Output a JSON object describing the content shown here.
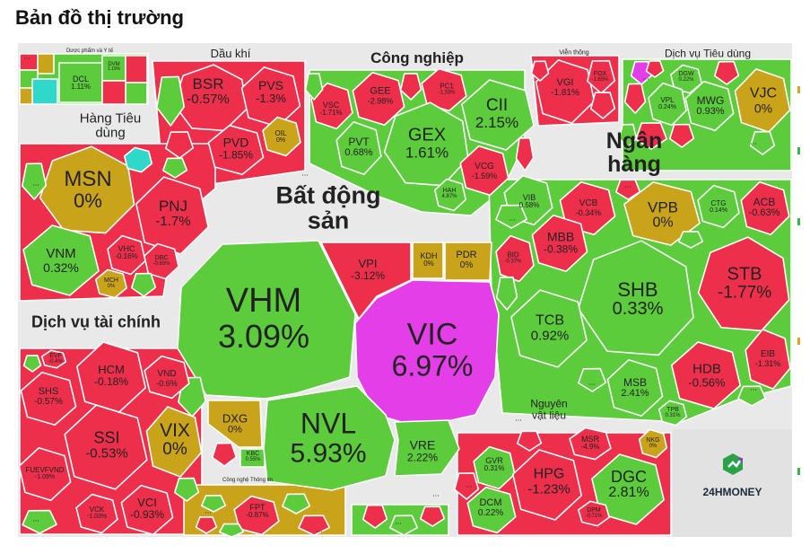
{
  "page": {
    "title": "Bản đồ thị trường",
    "brand": "24HMONEY",
    "more": "..."
  },
  "colors": {
    "red": "#ee2f4b",
    "green": "#5ccb3c",
    "yellow": "#c9a319",
    "purple": "#e43ee9",
    "cyan": "#2fd8c8",
    "bg": "#e9e9e9"
  },
  "sectors": [
    {
      "name": "Dược phẩm và Y tế"
    },
    {
      "name": "Dầu khí"
    },
    {
      "name": "Công nghiệp"
    },
    {
      "name": "Viễn thông"
    },
    {
      "name": "Dịch vụ Tiêu dùng"
    },
    {
      "name": "Hàng Tiêu dùng"
    },
    {
      "name": "Ngân hàng"
    },
    {
      "name": "Bất động sản"
    },
    {
      "name": "Dịch vụ tài chính"
    },
    {
      "name": "Nguyên vật liệu"
    },
    {
      "name": "Công nghệ Thông tin"
    }
  ],
  "stocks": [
    {
      "ticker": "DCL",
      "change": "1.11%",
      "color": "green"
    },
    {
      "ticker": "DVM",
      "change": "1.19%",
      "color": "green"
    },
    {
      "ticker": "BSR",
      "change": "-0.57%",
      "color": "red"
    },
    {
      "ticker": "PVS",
      "change": "-1.3%",
      "color": "red"
    },
    {
      "ticker": "OIL",
      "change": "0%",
      "color": "yellow"
    },
    {
      "ticker": "PVD",
      "change": "-1.85%",
      "color": "red"
    },
    {
      "ticker": "GEE",
      "change": "-2.98%",
      "color": "red"
    },
    {
      "ticker": "PC1",
      "change": "-1.33%",
      "color": "red"
    },
    {
      "ticker": "CII",
      "change": "2.15%",
      "color": "green"
    },
    {
      "ticker": "VSC",
      "change": "-1.71%",
      "color": "red"
    },
    {
      "ticker": "PVT",
      "change": "0.68%",
      "color": "green"
    },
    {
      "ticker": "GEX",
      "change": "1.61%",
      "color": "green"
    },
    {
      "ticker": "VCG",
      "change": "-1.59%",
      "color": "red"
    },
    {
      "ticker": "HAH",
      "change": "4.87%",
      "color": "green"
    },
    {
      "ticker": "VGI",
      "change": "-1.81%",
      "color": "red"
    },
    {
      "ticker": "FOX",
      "change": "-1.65%",
      "color": "red"
    },
    {
      "ticker": "DGW",
      "change": "0.22%",
      "color": "green"
    },
    {
      "ticker": "VPL",
      "change": "0.24%",
      "color": "green"
    },
    {
      "ticker": "MWG",
      "change": "0.93%",
      "color": "green"
    },
    {
      "ticker": "VJC",
      "change": "0%",
      "color": "yellow"
    },
    {
      "ticker": "MSN",
      "change": "0%",
      "color": "yellow"
    },
    {
      "ticker": "PNJ",
      "change": "-1.7%",
      "color": "red"
    },
    {
      "ticker": "VNM",
      "change": "0.32%",
      "color": "green"
    },
    {
      "ticker": "VHC",
      "change": "-0.16%",
      "color": "red"
    },
    {
      "ticker": "DBC",
      "change": "-0.65%",
      "color": "red"
    },
    {
      "ticker": "MCH",
      "change": "0%",
      "color": "yellow"
    },
    {
      "ticker": "VIB",
      "change": "0.58%",
      "color": "green"
    },
    {
      "ticker": "VCB",
      "change": "-0.34%",
      "color": "red"
    },
    {
      "ticker": "VPB",
      "change": "0%",
      "color": "yellow"
    },
    {
      "ticker": "CTG",
      "change": "0.14%",
      "color": "green"
    },
    {
      "ticker": "ACB",
      "change": "-0.63%",
      "color": "red"
    },
    {
      "ticker": "BID",
      "change": "-0.37%",
      "color": "red"
    },
    {
      "ticker": "MBB",
      "change": "-0.38%",
      "color": "red"
    },
    {
      "ticker": "SHB",
      "change": "0.33%",
      "color": "green"
    },
    {
      "ticker": "STB",
      "change": "-1.77%",
      "color": "red"
    },
    {
      "ticker": "TCB",
      "change": "0.92%",
      "color": "green"
    },
    {
      "ticker": "MSB",
      "change": "2.41%",
      "color": "green"
    },
    {
      "ticker": "HDB",
      "change": "-0.56%",
      "color": "red"
    },
    {
      "ticker": "EIB",
      "change": "-1.31%",
      "color": "red"
    },
    {
      "ticker": "TPB",
      "change": "0.31%",
      "color": "green"
    },
    {
      "ticker": "VHM",
      "change": "3.09%",
      "color": "green"
    },
    {
      "ticker": "VPI",
      "change": "-3.12%",
      "color": "red"
    },
    {
      "ticker": "KDH",
      "change": "0%",
      "color": "yellow"
    },
    {
      "ticker": "PDR",
      "change": "0%",
      "color": "yellow"
    },
    {
      "ticker": "VIC",
      "change": "6.97%",
      "color": "purple"
    },
    {
      "ticker": "DXG",
      "change": "0%",
      "color": "yellow"
    },
    {
      "ticker": "KBC",
      "change": "0.55%",
      "color": "green"
    },
    {
      "ticker": "NVL",
      "change": "5.93%",
      "color": "green"
    },
    {
      "ticker": "VRE",
      "change": "2.22%",
      "color": "green"
    },
    {
      "ticker": "EVF",
      "change": "-0.4%",
      "color": "red"
    },
    {
      "ticker": "HCM",
      "change": "-0.18%",
      "color": "red"
    },
    {
      "ticker": "VND",
      "change": "-0.6%",
      "color": "red"
    },
    {
      "ticker": "SHS",
      "change": "-0.57%",
      "color": "red"
    },
    {
      "ticker": "SSI",
      "change": "-0.53%",
      "color": "red"
    },
    {
      "ticker": "VIX",
      "change": "0%",
      "color": "yellow"
    },
    {
      "ticker": "FUEVFVND",
      "change": "-1.09%",
      "color": "red"
    },
    {
      "ticker": "VCK",
      "change": "-1.03%",
      "color": "red"
    },
    {
      "ticker": "VCI",
      "change": "-0.93%",
      "color": "red"
    },
    {
      "ticker": "FPT",
      "change": "-0.87%",
      "color": "red"
    },
    {
      "ticker": "GVR",
      "change": "0.31%",
      "color": "green"
    },
    {
      "ticker": "MSR",
      "change": "-4.9%",
      "color": "red"
    },
    {
      "ticker": "NKG",
      "change": "0%",
      "color": "yellow"
    },
    {
      "ticker": "HPG",
      "change": "-1.23%",
      "color": "red"
    },
    {
      "ticker": "DGC",
      "change": "2.81%",
      "color": "green"
    },
    {
      "ticker": "DCM",
      "change": "0.22%",
      "color": "green"
    },
    {
      "ticker": "DPM",
      "change": "-0.71%",
      "color": "red"
    }
  ]
}
